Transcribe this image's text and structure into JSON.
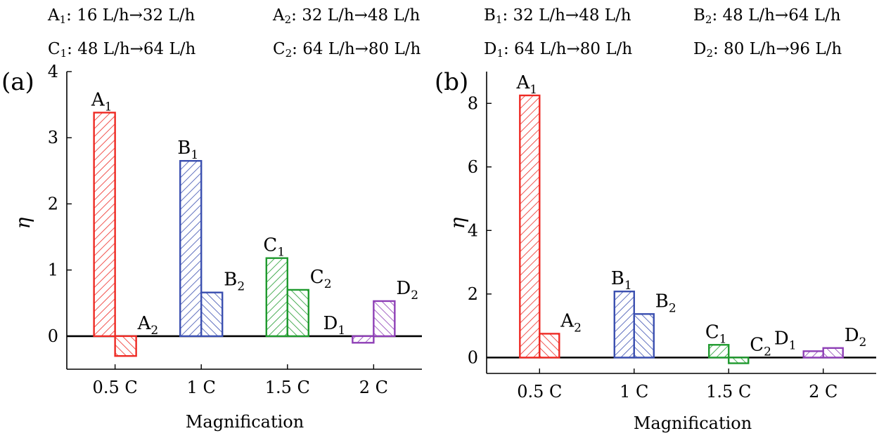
{
  "legend": [
    {
      "id": "A",
      "sub": "1",
      "text": ": 16 L/h→32 L/h"
    },
    {
      "id": "A",
      "sub": "2",
      "text": ": 32 L/h→48 L/h"
    },
    {
      "id": "B",
      "sub": "1",
      "text": ": 32 L/h→48 L/h"
    },
    {
      "id": "B",
      "sub": "2",
      "text": ": 48 L/h→64 L/h"
    },
    {
      "id": "C",
      "sub": "1",
      "text": ": 48 L/h→64 L/h"
    },
    {
      "id": "C",
      "sub": "2",
      "text": ": 64 L/h→80 L/h"
    },
    {
      "id": "D",
      "sub": "1",
      "text": ": 64 L/h→80 L/h"
    },
    {
      "id": "D",
      "sub": "2",
      "text": ": 80 L/h→96 L/h"
    }
  ],
  "colors": {
    "A": "#ee2a24",
    "B": "#3a4fb0",
    "C": "#1f9a2e",
    "D": "#8e3fb6",
    "axis": "#000000"
  },
  "chart_data": [
    {
      "panel": "(a)",
      "type": "bar",
      "categories": [
        "0.5 C",
        "1 C",
        "1.5 C",
        "2 C"
      ],
      "groups": [
        "A",
        "B",
        "C",
        "D"
      ],
      "bar_labels": [
        [
          "A",
          "1"
        ],
        [
          "A",
          "2"
        ],
        [
          "B",
          "1"
        ],
        [
          "B",
          "2"
        ],
        [
          "C",
          "1"
        ],
        [
          "C",
          "2"
        ],
        [
          "D",
          "1"
        ],
        [
          "D",
          "2"
        ]
      ],
      "series": [
        {
          "values": [
            3.38,
            2.65,
            1.18,
            -0.1
          ]
        },
        {
          "values": [
            -0.3,
            0.66,
            0.7,
            0.53
          ]
        }
      ],
      "xlabel": "Magnification",
      "ylabel": "η",
      "ylim": [
        -0.5,
        4
      ],
      "yticks": [
        0,
        1,
        2,
        3,
        4
      ]
    },
    {
      "panel": "(b)",
      "type": "bar",
      "categories": [
        "0.5 C",
        "1 C",
        "1.5 C",
        "2 C"
      ],
      "groups": [
        "A",
        "B",
        "C",
        "D"
      ],
      "bar_labels": [
        [
          "A",
          "1"
        ],
        [
          "A",
          "2"
        ],
        [
          "B",
          "1"
        ],
        [
          "B",
          "2"
        ],
        [
          "C",
          "1"
        ],
        [
          "C",
          "2"
        ],
        [
          "D",
          "1"
        ],
        [
          "D",
          "2"
        ]
      ],
      "series": [
        {
          "values": [
            8.25,
            2.08,
            0.4,
            0.2
          ]
        },
        {
          "values": [
            0.75,
            1.37,
            -0.18,
            0.3
          ]
        }
      ],
      "xlabel": "Magnification",
      "ylabel": "η",
      "ylim": [
        -0.5,
        9
      ],
      "yticks": [
        0,
        2,
        4,
        6,
        8
      ]
    }
  ]
}
